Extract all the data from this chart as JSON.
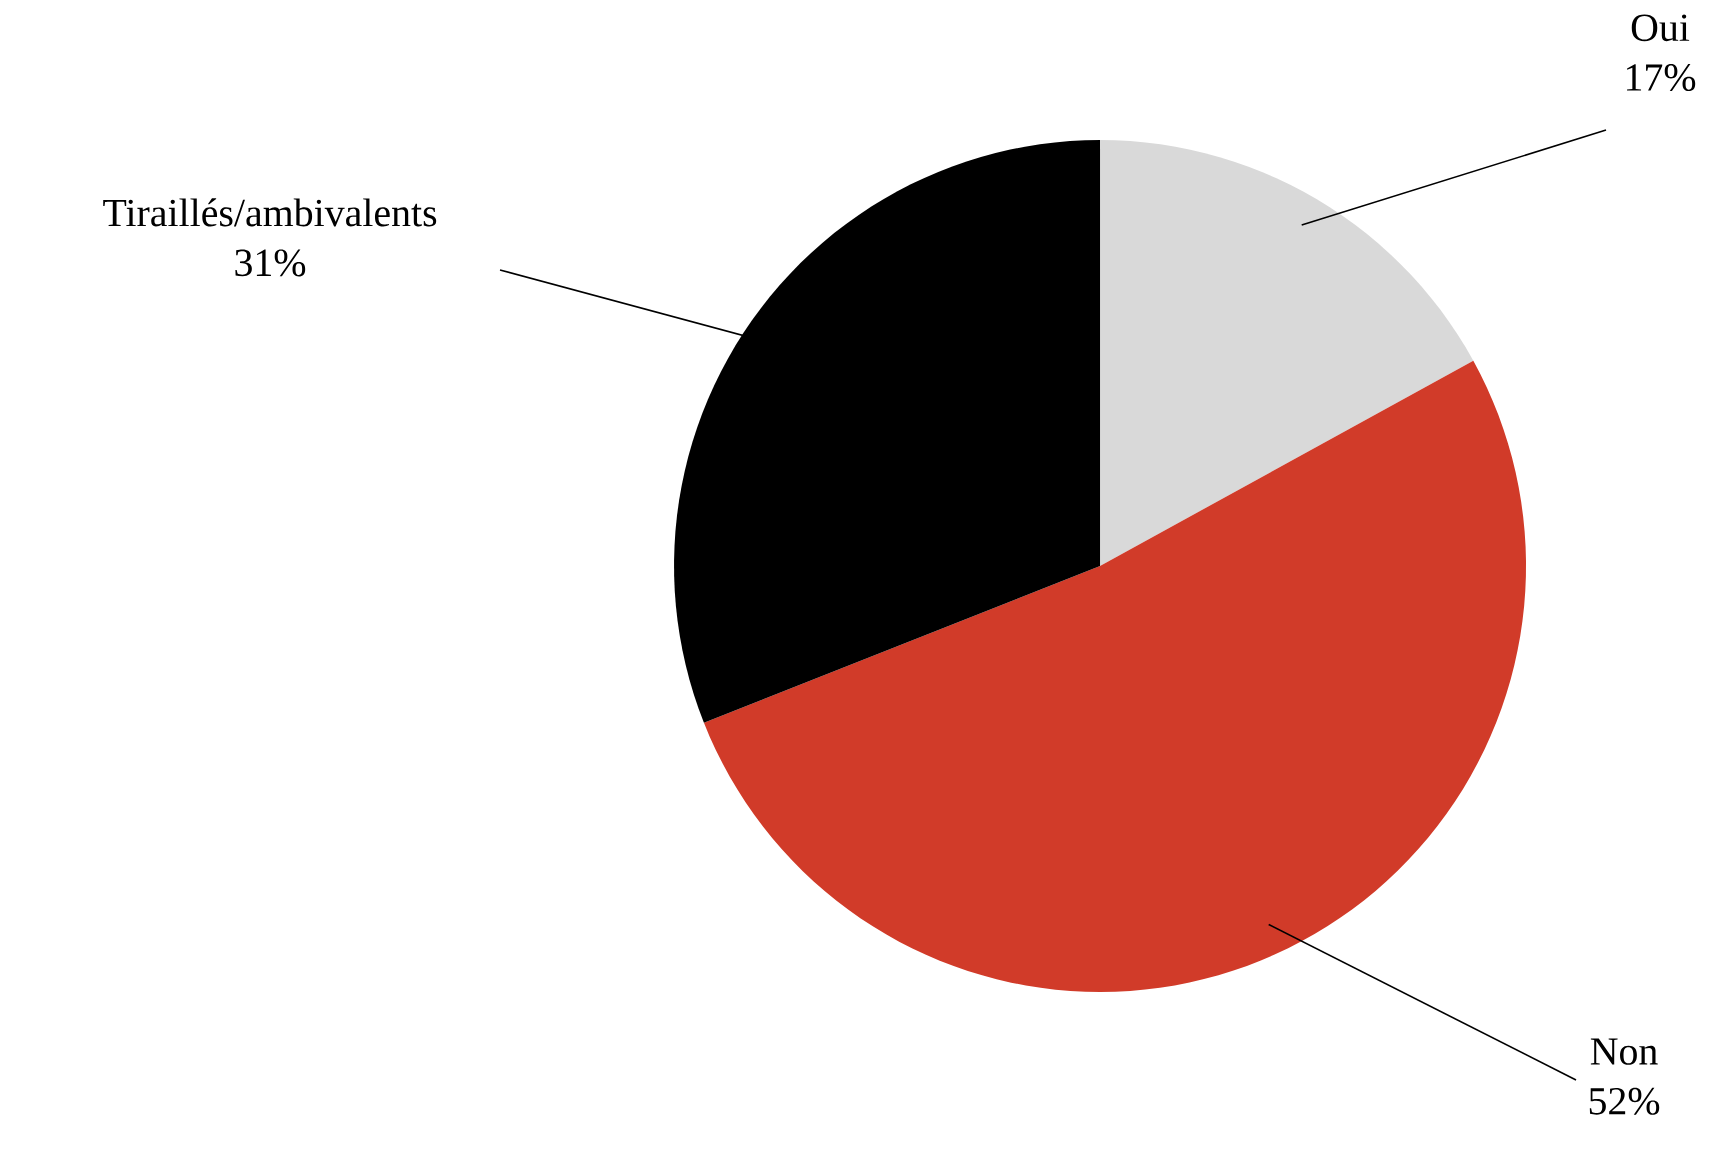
{
  "chart_data": {
    "type": "pie",
    "categories": [
      "Oui",
      "Non",
      "Tiraillés/ambivalents"
    ],
    "values": [
      17,
      52,
      31
    ],
    "value_labels": [
      "17%",
      "52%",
      "31%"
    ],
    "colors": [
      "#d9d9d9",
      "#d13b29",
      "#000000"
    ]
  }
}
